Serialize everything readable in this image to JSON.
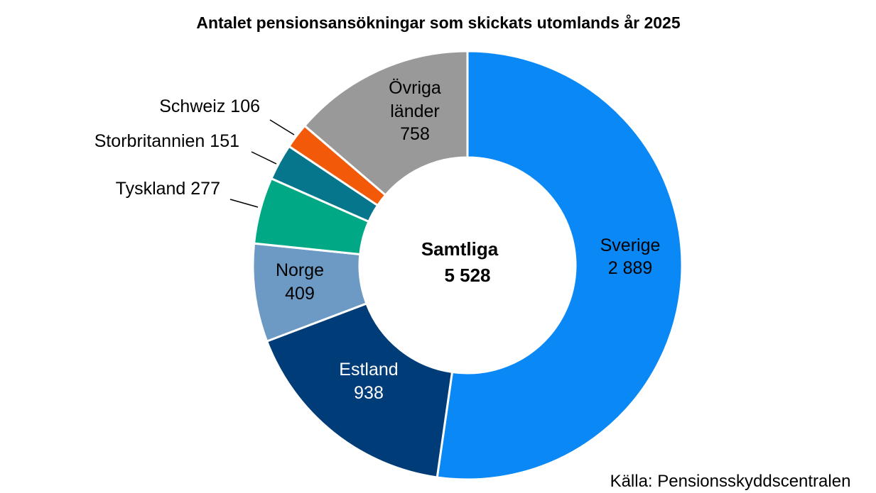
{
  "chart_data": {
    "type": "pie",
    "title": "Antalet pensionsansökningar som skickats utomlands år 2025",
    "center": {
      "line1": "Samtliga",
      "line2": "5 528"
    },
    "source": "Källa: Pensionsskyddscentralen",
    "slices": [
      {
        "name": "Sverige",
        "value_label": "2 889",
        "value": 2889,
        "color": "#0A88F5",
        "text_color": "#000000",
        "inside": true
      },
      {
        "name": "Estland",
        "value_label": "938",
        "value": 938,
        "color": "#003D78",
        "text_color": "#FFFFFF",
        "inside": true
      },
      {
        "name": "Norge",
        "value_label": "409",
        "value": 409,
        "color": "#6C9AC4",
        "text_color": "#000000",
        "inside": true
      },
      {
        "name": "Tyskland",
        "value_label": "277",
        "value": 277,
        "color": "#00A885",
        "text_color": "#000000",
        "inside": false
      },
      {
        "name": "Storbritannien",
        "value_label": "151",
        "value": 151,
        "color": "#05768C",
        "text_color": "#000000",
        "inside": false
      },
      {
        "name": "Schweiz",
        "value_label": "106",
        "value": 106,
        "color": "#F25A0A",
        "text_color": "#000000",
        "inside": false
      },
      {
        "name": "Övriga länder",
        "label_lines": [
          "Övriga",
          "länder"
        ],
        "value_label": "758",
        "value": 758,
        "color": "#999999",
        "text_color": "#000000",
        "inside": true
      }
    ]
  }
}
